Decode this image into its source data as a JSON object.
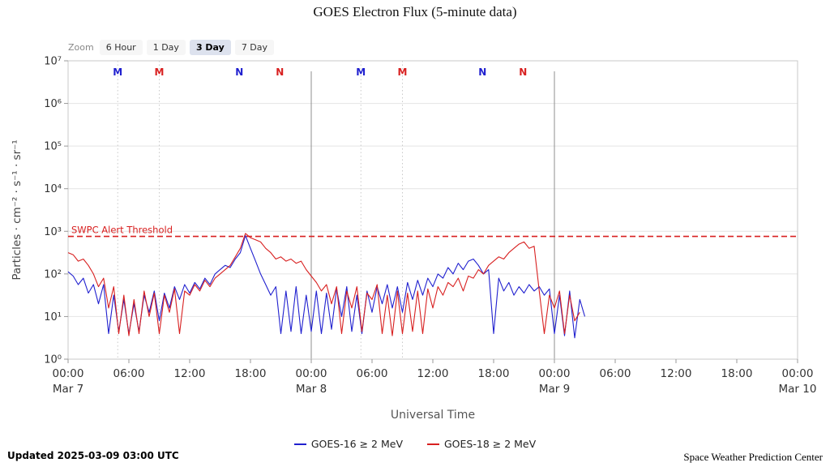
{
  "title": "GOES Electron Flux (5-minute data)",
  "zoom": {
    "label": "Zoom",
    "options": [
      {
        "label": "6 Hour",
        "selected": false
      },
      {
        "label": "1 Day",
        "selected": false
      },
      {
        "label": "3 Day",
        "selected": true
      },
      {
        "label": "7 Day",
        "selected": false
      }
    ]
  },
  "footer": {
    "updated": "Updated 2025-03-09 03:00 UTC",
    "credit": "Space Weather Prediction Center"
  },
  "chart_data": {
    "type": "line",
    "title": "GOES Electron Flux (5-minute data)",
    "xlabel": "Universal Time",
    "ylabel": "Particles · cm⁻² · s⁻¹ · sr⁻¹",
    "y_scale": "log10",
    "y_log_range": [
      0,
      7
    ],
    "y_tick_labels": [
      "10⁰",
      "10¹",
      "10²",
      "10³",
      "10⁴",
      "10⁵",
      "10⁶",
      "10⁷"
    ],
    "x_range_hours": [
      0,
      72
    ],
    "x_ticks": [
      {
        "hour": 0,
        "time": "00:00",
        "date": "Mar 7"
      },
      {
        "hour": 6,
        "time": "06:00"
      },
      {
        "hour": 12,
        "time": "12:00"
      },
      {
        "hour": 18,
        "time": "18:00"
      },
      {
        "hour": 24,
        "time": "00:00",
        "date": "Mar 8"
      },
      {
        "hour": 30,
        "time": "06:00"
      },
      {
        "hour": 36,
        "time": "12:00"
      },
      {
        "hour": 42,
        "time": "18:00"
      },
      {
        "hour": 48,
        "time": "00:00",
        "date": "Mar 9"
      },
      {
        "hour": 54,
        "time": "06:00"
      },
      {
        "hour": 60,
        "time": "12:00"
      },
      {
        "hour": 66,
        "time": "18:00"
      },
      {
        "hour": 72,
        "time": "00:00",
        "date": "Mar 10"
      }
    ],
    "threshold": {
      "label": "SWPC Alert Threshold",
      "log10_value": 2.88,
      "color": "#d82020",
      "style": "dashed"
    },
    "day_boundary_hours": [
      24,
      48
    ],
    "satellite_midnight_dotted_hours": [
      4.9,
      9.0,
      28.9,
      33.0
    ],
    "markers": [
      {
        "label": "M",
        "series": "GOES-16",
        "hour": 4.9
      },
      {
        "label": "M",
        "series": "GOES-18",
        "hour": 9.0
      },
      {
        "label": "N",
        "series": "GOES-16",
        "hour": 16.9
      },
      {
        "label": "N",
        "series": "GOES-18",
        "hour": 20.9
      },
      {
        "label": "M",
        "series": "GOES-16",
        "hour": 28.9
      },
      {
        "label": "M",
        "series": "GOES-18",
        "hour": 33.0
      },
      {
        "label": "N",
        "series": "GOES-16",
        "hour": 40.9
      },
      {
        "label": "N",
        "series": "GOES-18",
        "hour": 44.9
      }
    ],
    "legend_position": "bottom",
    "grid": "horizontal",
    "series": [
      {
        "name": "GOES-16 ≥ 2 MeV",
        "satellite": "GOES-16",
        "color": "#2020cf",
        "start_hour": 0,
        "step_hours": 0.5,
        "log10_values": [
          2.05,
          1.95,
          1.75,
          1.9,
          1.55,
          1.75,
          1.3,
          1.75,
          0.6,
          1.5,
          0.65,
          1.4,
          0.6,
          1.3,
          0.65,
          1.5,
          1.1,
          1.6,
          0.9,
          1.55,
          1.2,
          1.7,
          1.4,
          1.75,
          1.55,
          1.8,
          1.65,
          1.9,
          1.75,
          2.0,
          2.1,
          2.2,
          2.15,
          2.35,
          2.5,
          2.9,
          2.6,
          2.3,
          2.0,
          1.75,
          1.5,
          1.7,
          0.6,
          1.6,
          0.65,
          1.7,
          0.6,
          1.5,
          0.65,
          1.6,
          0.6,
          1.55,
          0.7,
          1.65,
          1.0,
          1.7,
          0.65,
          1.5,
          0.6,
          1.6,
          1.1,
          1.7,
          1.3,
          1.75,
          1.2,
          1.7,
          1.1,
          1.8,
          1.4,
          1.85,
          1.5,
          1.9,
          1.7,
          2.0,
          1.9,
          2.15,
          2.0,
          2.25,
          2.1,
          2.3,
          2.35,
          2.2,
          2.0,
          2.1,
          0.6,
          1.9,
          1.6,
          1.8,
          1.5,
          1.7,
          1.55,
          1.75,
          1.6,
          1.7,
          1.5,
          1.65,
          0.6,
          1.5,
          0.55,
          1.6,
          0.5,
          1.4,
          1.0
        ]
      },
      {
        "name": "GOES-18 ≥ 2 MeV",
        "satellite": "GOES-18",
        "color": "#d82020",
        "start_hour": 0,
        "step_hours": 0.5,
        "log10_values": [
          2.5,
          2.45,
          2.3,
          2.35,
          2.2,
          2.0,
          1.7,
          1.9,
          1.2,
          1.7,
          0.6,
          1.5,
          0.55,
          1.4,
          0.6,
          1.6,
          1.0,
          1.55,
          0.6,
          1.5,
          1.1,
          1.65,
          0.6,
          1.6,
          1.5,
          1.75,
          1.6,
          1.85,
          1.7,
          1.9,
          2.0,
          2.1,
          2.2,
          2.4,
          2.6,
          2.95,
          2.85,
          2.8,
          2.75,
          2.6,
          2.5,
          2.35,
          2.4,
          2.3,
          2.35,
          2.25,
          2.3,
          2.1,
          1.95,
          1.8,
          1.6,
          1.75,
          1.3,
          1.7,
          0.6,
          1.6,
          1.2,
          1.7,
          0.65,
          1.55,
          1.4,
          1.75,
          0.6,
          1.5,
          0.55,
          1.6,
          0.6,
          1.55,
          0.65,
          1.6,
          0.6,
          1.65,
          1.2,
          1.7,
          1.5,
          1.8,
          1.7,
          1.9,
          1.6,
          1.95,
          1.9,
          2.1,
          2.0,
          2.2,
          2.3,
          2.4,
          2.35,
          2.5,
          2.6,
          2.7,
          2.75,
          2.6,
          2.65,
          1.6,
          0.6,
          1.5,
          1.2,
          1.6,
          0.6,
          1.5,
          0.9,
          1.1
        ]
      }
    ]
  }
}
